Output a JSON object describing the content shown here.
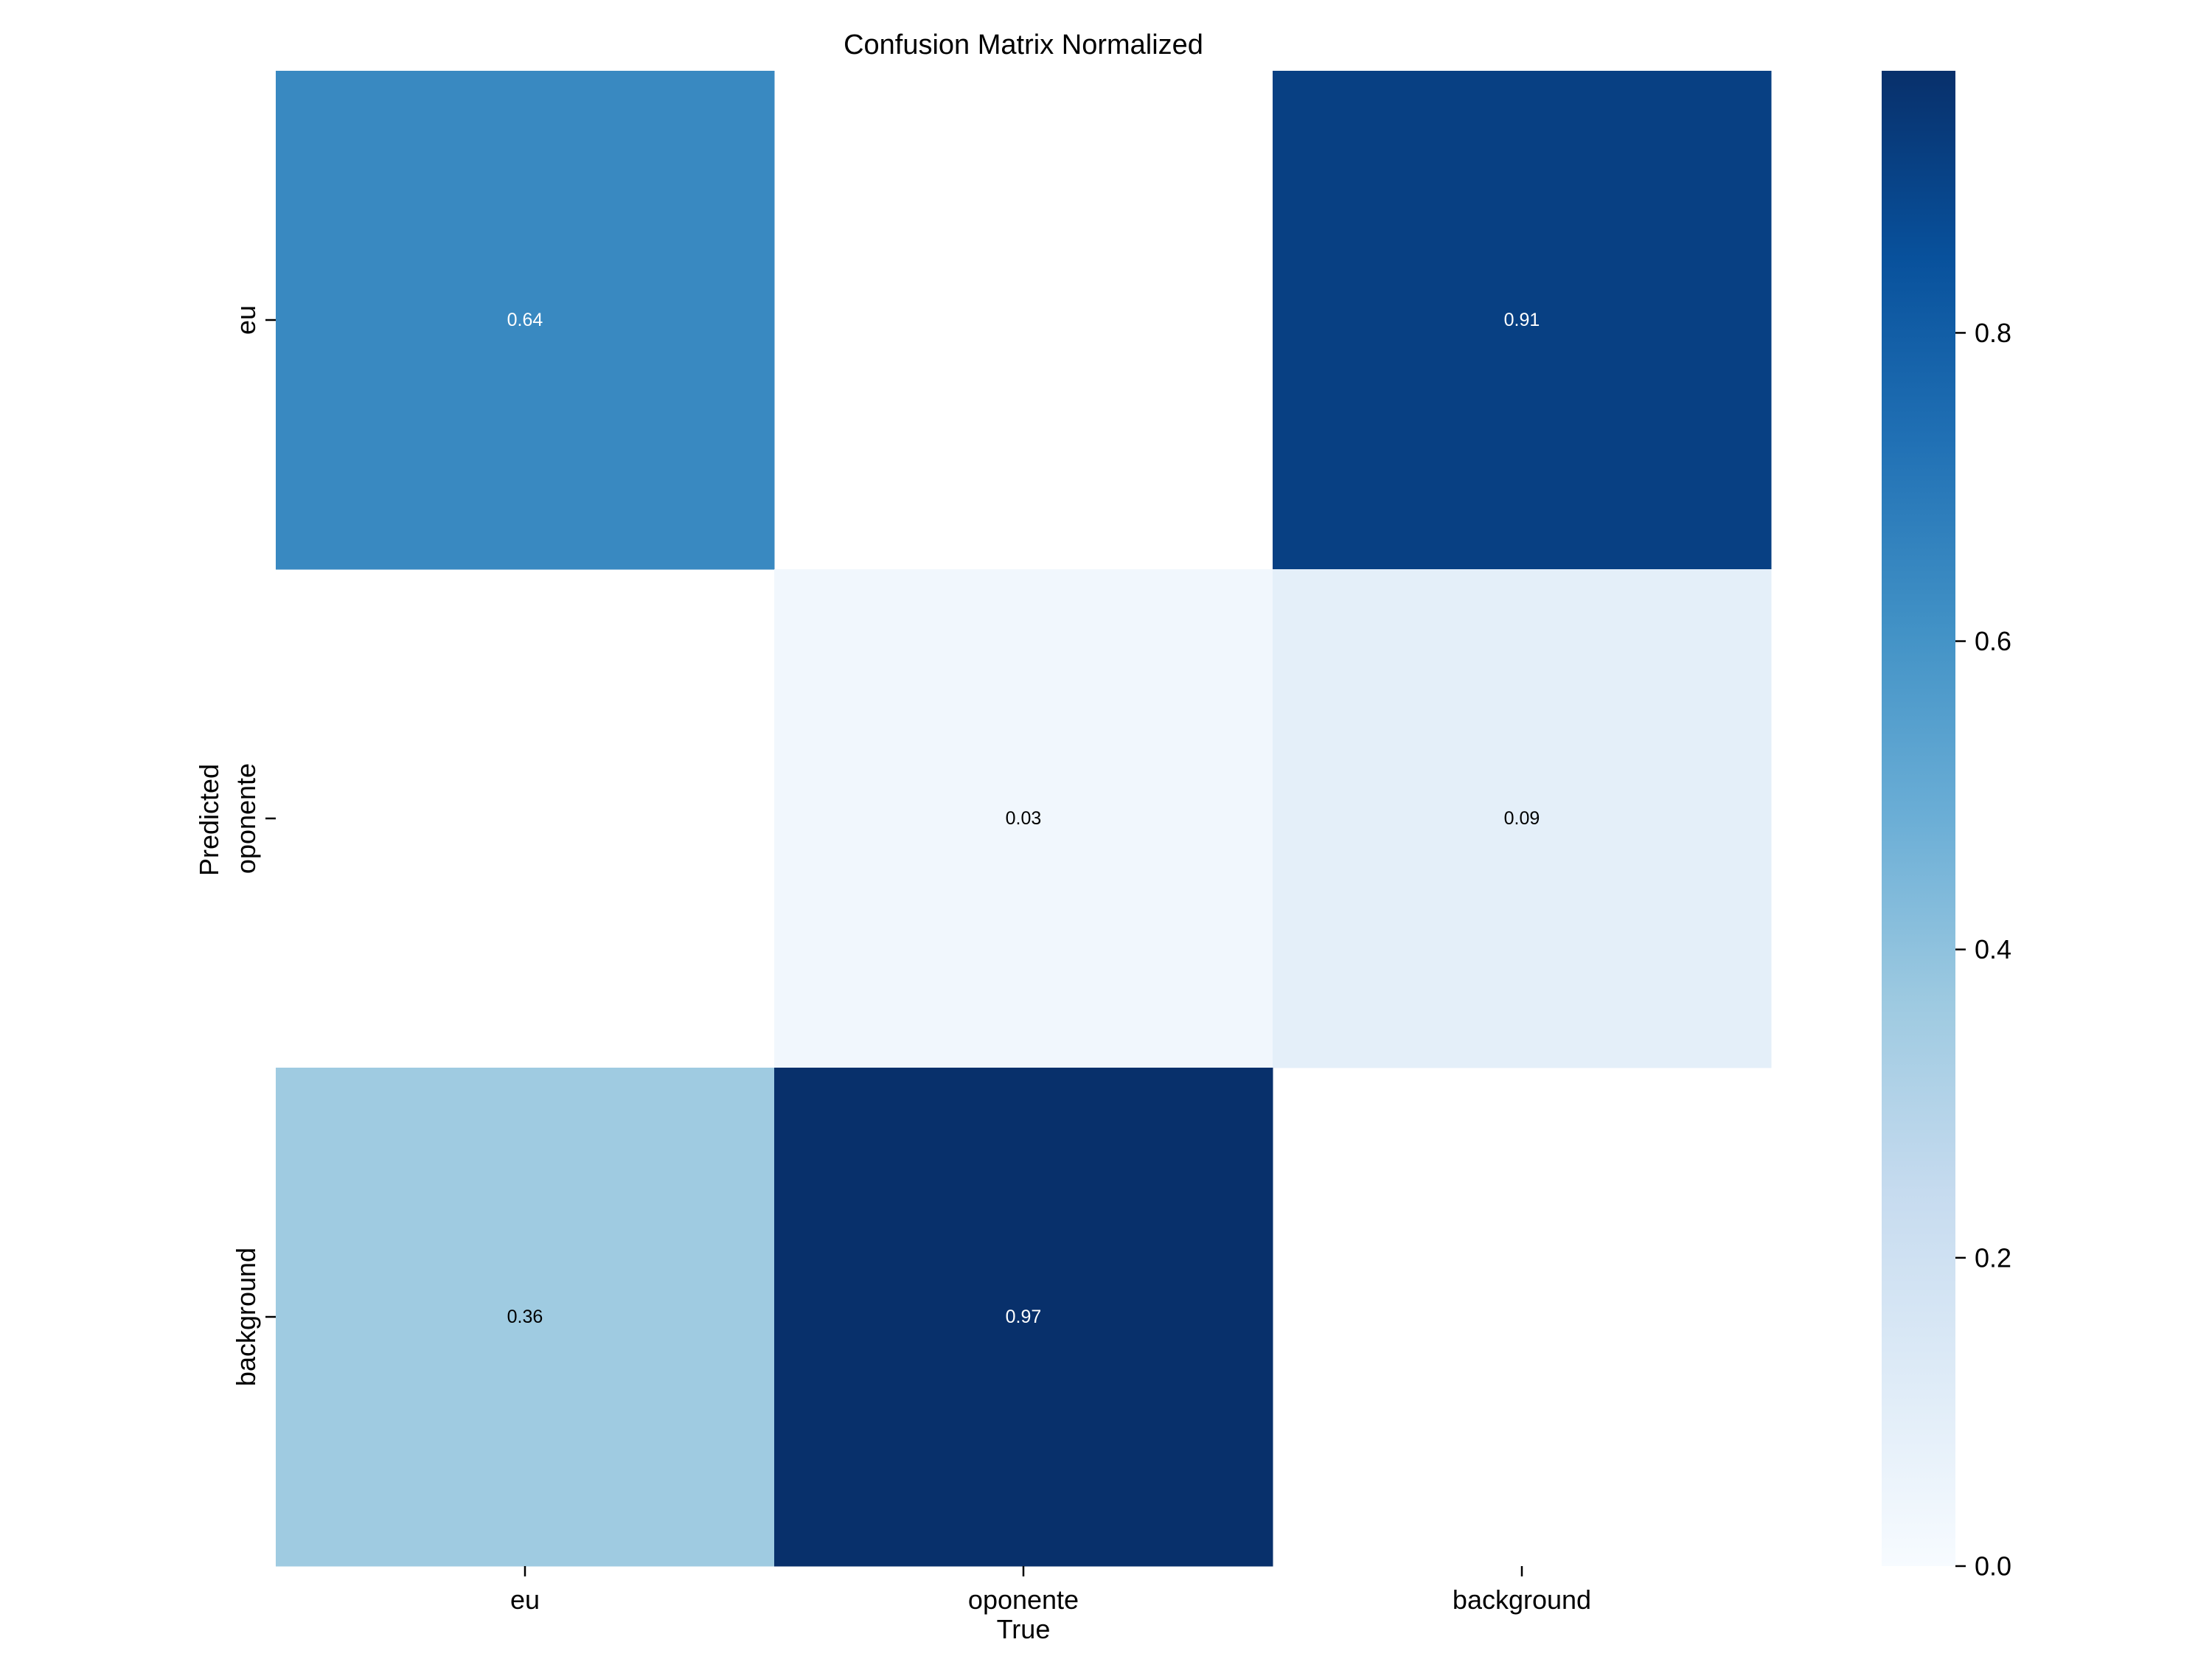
{
  "chart_data": {
    "type": "heatmap",
    "title": "Confusion Matrix Normalized",
    "xlabel": "True",
    "ylabel": "Predicted",
    "x_categories": [
      "eu",
      "oponente",
      "background"
    ],
    "y_categories": [
      "eu",
      "oponente",
      "background"
    ],
    "values": [
      [
        0.64,
        null,
        0.91
      ],
      [
        null,
        0.03,
        0.09
      ],
      [
        0.36,
        0.97,
        null
      ]
    ],
    "cell_labels": [
      [
        "0.64",
        "",
        "0.91"
      ],
      [
        "",
        "0.03",
        "0.09"
      ],
      [
        "0.36",
        "0.97",
        ""
      ]
    ],
    "colormap": "Blues",
    "vmin": 0.0,
    "vmax": 0.97,
    "colorbar_ticks": [
      0.0,
      0.2,
      0.4,
      0.6,
      0.8
    ],
    "colorbar_tick_labels": [
      "0.0",
      "0.2",
      "0.4",
      "0.6",
      "0.8"
    ],
    "grid": false,
    "colors": {
      "background": "#ffffff",
      "text_dark": "#000000",
      "text_light": "#ffffff"
    }
  }
}
